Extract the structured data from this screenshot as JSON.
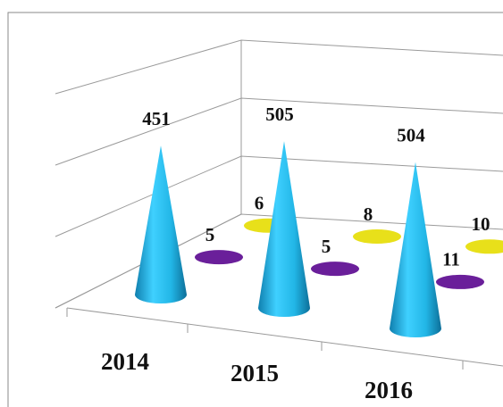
{
  "chart_data": {
    "type": "cone3d",
    "categories": [
      "2014",
      "2015",
      "2016"
    ],
    "series": [
      {
        "color": "#1cb8e8",
        "values": [
          451,
          505,
          504
        ]
      },
      {
        "color": "#6a1f9a",
        "values": [
          5,
          5,
          11
        ]
      },
      {
        "color": "#e8e01a",
        "values": [
          6,
          8,
          10
        ]
      }
    ],
    "ylim": [
      0,
      600
    ],
    "yticks": [
      0,
      200,
      400,
      600
    ],
    "grid": true
  }
}
